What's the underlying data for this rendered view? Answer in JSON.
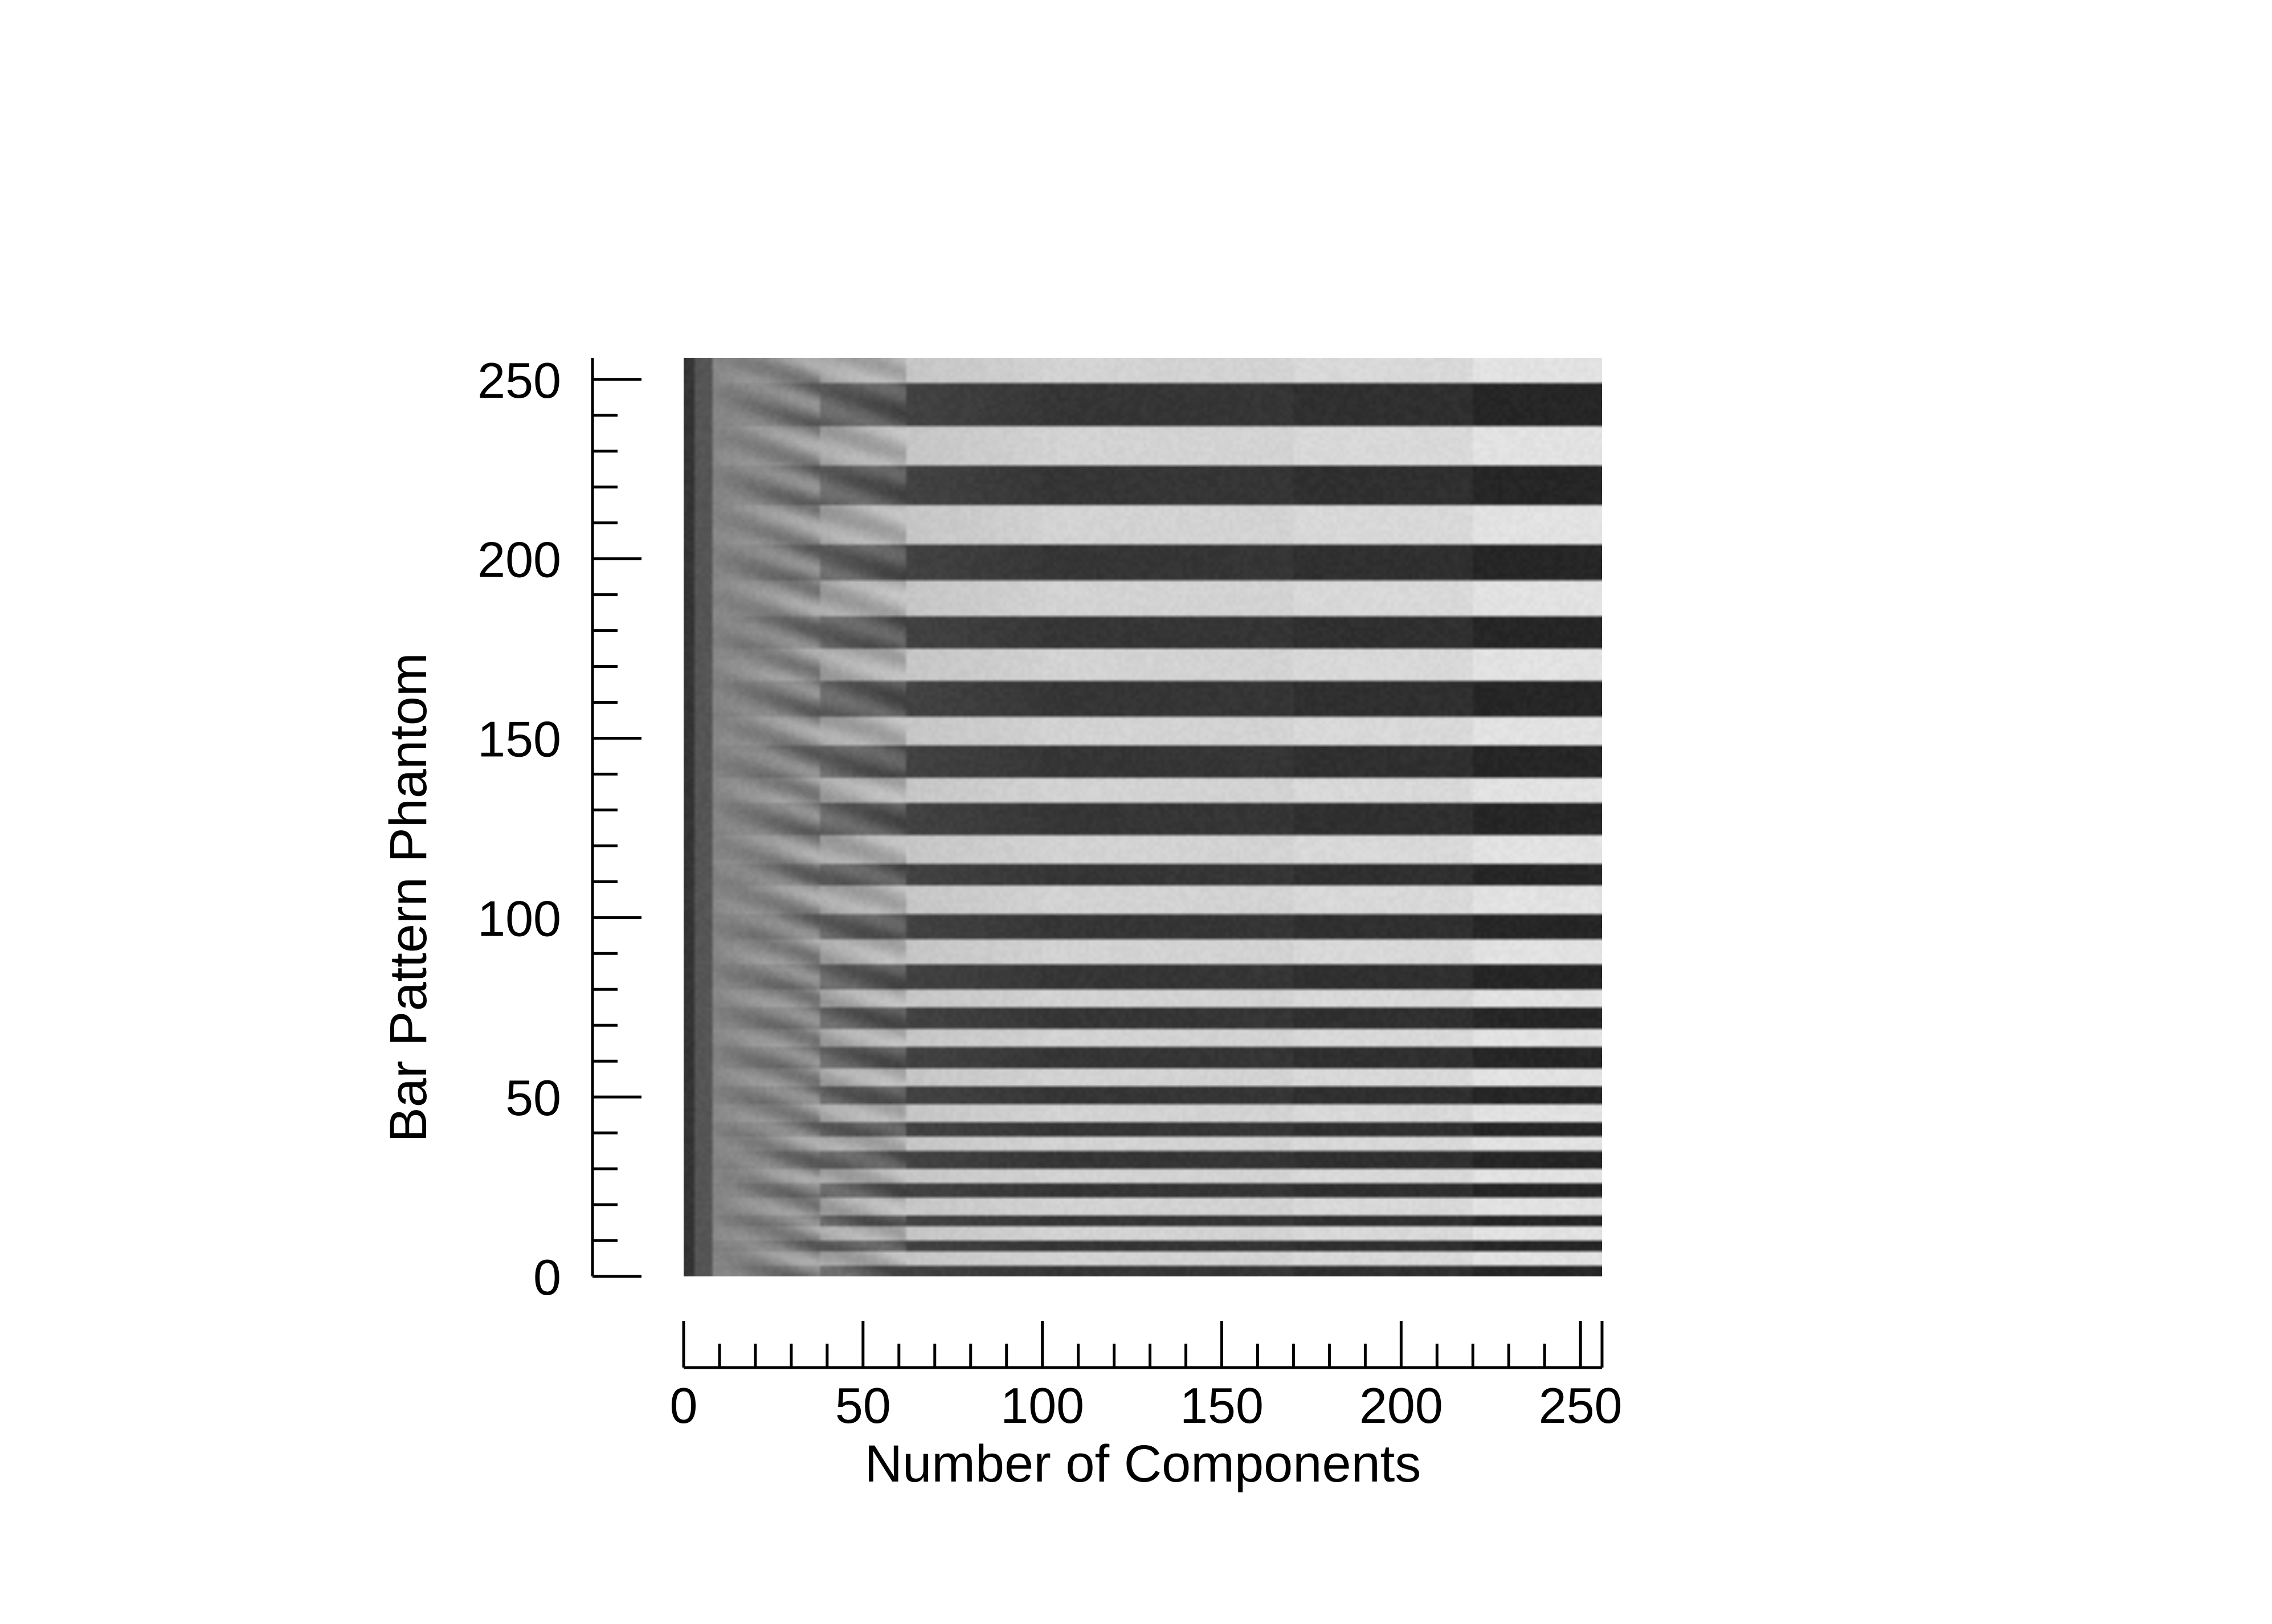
{
  "chart_data": {
    "type": "heatmap",
    "title": "",
    "xlabel": "Number of Components",
    "ylabel": "Bar Pattern Phantom",
    "xlim": [
      0,
      256
    ],
    "ylim": [
      0,
      256
    ],
    "x_ticks": [
      0,
      50,
      100,
      150,
      200,
      250
    ],
    "y_ticks": [
      0,
      50,
      100,
      150,
      200,
      250
    ],
    "x_tick_labels": [
      "0",
      "50",
      "100",
      "150",
      "200",
      "250"
    ],
    "y_tick_labels": [
      "0",
      "50",
      "100",
      "150",
      "200",
      "250"
    ],
    "minor_tick_step": 10,
    "colormap": "grayscale",
    "grid": false,
    "legend": "none",
    "colors": {
      "foreground": "#000000",
      "background": "#ffffff"
    }
  }
}
